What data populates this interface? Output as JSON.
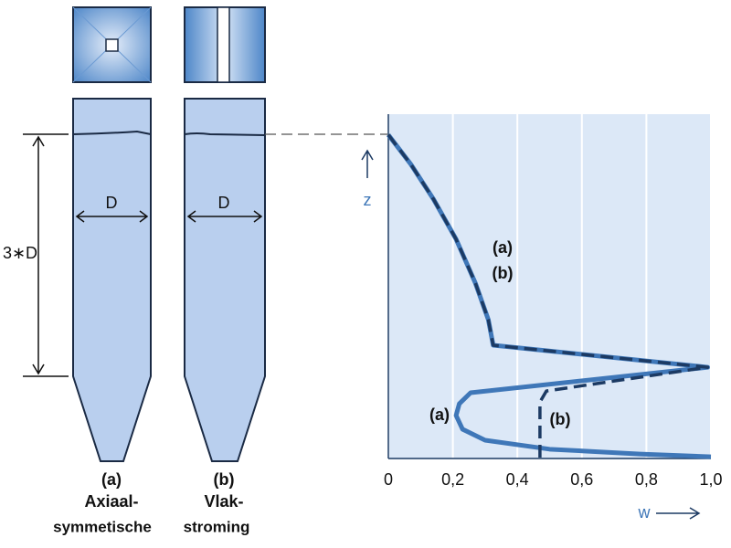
{
  "diagram": {
    "column_a": {
      "width_label": "D",
      "label": "(a)",
      "name_line1": "Axiaal-",
      "name_line2": "symmetische"
    },
    "column_b": {
      "width_label": "D",
      "label": "(b)",
      "name_line1": "Vlak-",
      "name_line2": "stroming"
    },
    "height_label": "3∗D"
  },
  "chart_data": {
    "type": "line",
    "xlabel": "w",
    "ylabel": "z",
    "xlim": [
      0,
      1
    ],
    "ylim": [
      0,
      1
    ],
    "xticks": [
      0,
      {
        "value": 0.2,
        "label": "0,2"
      },
      {
        "value": 0.4,
        "label": "0,4"
      },
      {
        "value": 0.6,
        "label": "0,6"
      },
      {
        "value": 0.8,
        "label": "0,8"
      },
      {
        "value": 1.0,
        "label": "1,0"
      }
    ],
    "grid": true,
    "series": [
      {
        "name": "(a)",
        "color": "#3f77b8",
        "x": [
          0,
          0.07,
          0.14,
          0.21,
          0.27,
          0.31,
          0.325,
          0.99,
          0.255,
          0.22,
          0.21,
          0.23,
          0.3,
          0.5,
          0.78,
          1.0
        ],
        "values": [
          0.94,
          0.854,
          0.753,
          0.637,
          0.509,
          0.403,
          0.329,
          0.265,
          0.191,
          0.159,
          0.125,
          0.085,
          0.053,
          0.027,
          0.013,
          0.005
        ]
      },
      {
        "name": "(b)",
        "color": "#1c3a63",
        "x": [
          0,
          0.07,
          0.14,
          0.21,
          0.27,
          0.31,
          0.325,
          0.99,
          0.49,
          0.47,
          0.47
        ],
        "values": [
          0.94,
          0.854,
          0.753,
          0.637,
          0.509,
          0.403,
          0.329,
          0.265,
          0.196,
          0.164,
          0
        ]
      }
    ]
  }
}
